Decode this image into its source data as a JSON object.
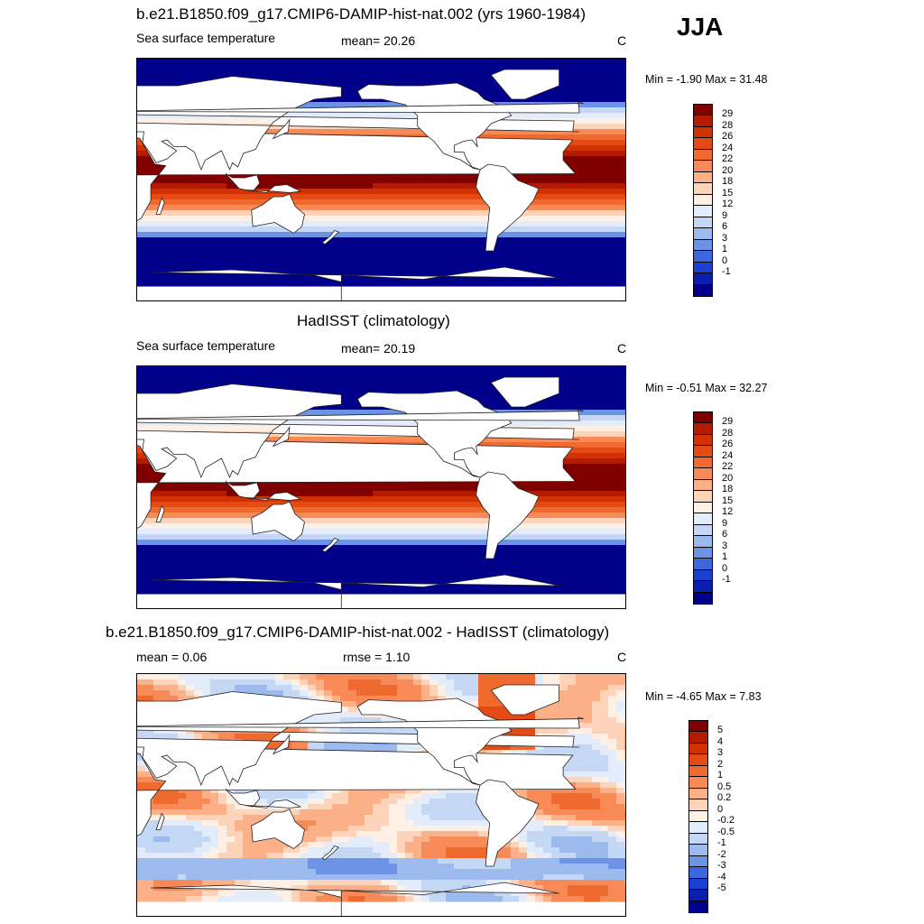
{
  "season": "JJA",
  "panels": [
    {
      "title": "b.e21.B1850.f09_g17.CMIP6-DAMIP-hist-nat.002 (yrs 1960-1984)",
      "left_label": "Sea surface temperature",
      "center_label": "mean=  20.26",
      "units": "C",
      "minmax": "Min =  -1.90 Max =  31.48",
      "kind": "sst",
      "colorbar": {
        "labels": [
          "29",
          "28",
          "26",
          "24",
          "22",
          "20",
          "18",
          "15",
          "12",
          "9",
          "6",
          "3",
          "1",
          "0",
          "-1"
        ],
        "colors": [
          "#800000",
          "#b51b00",
          "#d13200",
          "#e44a14",
          "#f06a30",
          "#f88a57",
          "#fbb088",
          "#fdd3b9",
          "#fff0e6",
          "#e2ecfa",
          "#c4d7f5",
          "#9dbaef",
          "#6c93e6",
          "#3b68dc",
          "#1a3fd1",
          "#0a1fb0",
          "#00008b"
        ]
      }
    },
    {
      "title": "HadISST (climatology)",
      "left_label": "Sea surface temperature",
      "center_label": "mean=  20.19",
      "units": "C",
      "minmax": "Min =  -0.51 Max =  32.27",
      "kind": "sst",
      "colorbar": {
        "labels": [
          "29",
          "28",
          "26",
          "24",
          "22",
          "20",
          "18",
          "15",
          "12",
          "9",
          "6",
          "3",
          "1",
          "0",
          "-1"
        ],
        "colors": [
          "#800000",
          "#b51b00",
          "#d13200",
          "#e44a14",
          "#f06a30",
          "#f88a57",
          "#fbb088",
          "#fdd3b9",
          "#fff0e6",
          "#e2ecfa",
          "#c4d7f5",
          "#9dbaef",
          "#6c93e6",
          "#3b68dc",
          "#1a3fd1",
          "#0a1fb0",
          "#00008b"
        ]
      }
    },
    {
      "title": "b.e21.B1850.f09_g17.CMIP6-DAMIP-hist-nat.002 - HadISST (climatology)",
      "left_label": "mean =   0.06",
      "center_label": "rmse =   1.10",
      "units": "C",
      "minmax": "Min =  -4.65 Max =   7.83",
      "kind": "diff",
      "colorbar": {
        "labels": [
          "5",
          "4",
          "3",
          "2",
          "1",
          "0.5",
          "0.2",
          "0",
          "-0.2",
          "-0.5",
          "-1",
          "-2",
          "-3",
          "-4",
          "-5"
        ],
        "colors": [
          "#800000",
          "#b51b00",
          "#d13200",
          "#e44a14",
          "#f06a30",
          "#f88a57",
          "#fbb088",
          "#fdd3b9",
          "#fff0e6",
          "#e2ecfa",
          "#c4d7f5",
          "#9dbaef",
          "#6c93e6",
          "#3b68dc",
          "#1a3fd1",
          "#0a1fb0",
          "#00008b"
        ]
      }
    }
  ]
}
